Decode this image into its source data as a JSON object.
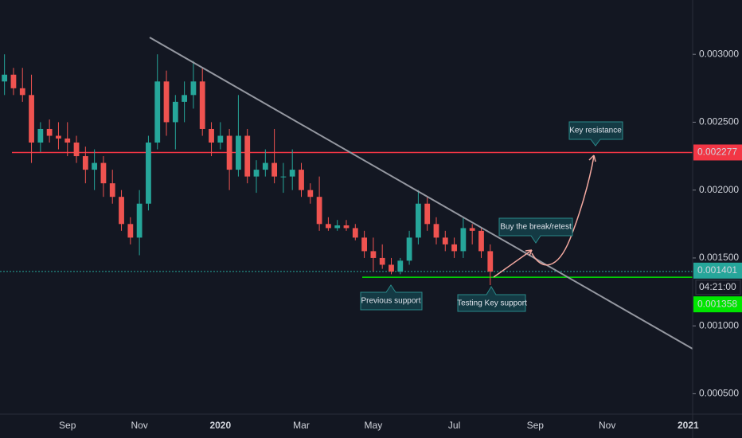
{
  "chart_data": {
    "type": "candlestick",
    "categories": [
      null,
      null,
      null,
      null,
      null,
      null,
      null,
      "Sep",
      null,
      null,
      null,
      null,
      null,
      null,
      null,
      "Nov",
      null,
      null,
      null,
      null,
      null,
      null,
      null,
      null,
      "2020",
      null,
      null,
      null,
      null,
      null,
      null,
      null,
      null,
      "Mar",
      null,
      null,
      null,
      null,
      null,
      null,
      null,
      "May",
      null,
      null,
      null,
      null,
      null,
      null,
      null,
      null,
      "Jul",
      null,
      null,
      null,
      null,
      null,
      null,
      null,
      null,
      "Sep",
      null,
      null,
      null,
      null,
      null,
      null,
      null,
      "Nov",
      null,
      null,
      null,
      null,
      null,
      null,
      null,
      null,
      "2021"
    ],
    "open": [
      0.0028,
      0.00285,
      0.00275,
      0.0027,
      0.00235,
      0.00245,
      0.0024,
      0.00238,
      0.00235,
      0.00225,
      0.00215,
      0.0022,
      0.00205,
      0.00195,
      0.00175,
      0.00165,
      0.0019,
      0.00235,
      0.0028,
      0.0025,
      0.00265,
      0.0027,
      0.0028,
      0.00245,
      0.00235,
      0.0024,
      0.00215,
      0.0024,
      0.0021,
      0.00215,
      0.0022,
      0.0021,
      0.0021,
      0.00215,
      0.002,
      0.00195,
      0.00175,
      0.00172,
      0.00174,
      0.00172,
      0.00165,
      0.00155,
      0.0015,
      0.00145,
      0.0014,
      0.00148,
      0.00165,
      0.0019,
      0.00175,
      0.00165,
      0.0016,
      0.00155,
      0.00172,
      0.0017,
      0.00155,
      null,
      null,
      null,
      null,
      null,
      null,
      null,
      null,
      null,
      null,
      null,
      null,
      null,
      null,
      null,
      null,
      null,
      null,
      null,
      null,
      null,
      null
    ],
    "high": [
      0.003,
      0.0029,
      0.0029,
      0.00285,
      0.0025,
      0.00252,
      0.0025,
      0.0025,
      0.0024,
      0.00232,
      0.0023,
      0.00225,
      0.00215,
      0.002,
      0.0018,
      0.002,
      0.0024,
      0.003,
      0.00288,
      0.0027,
      0.0028,
      0.00295,
      0.0029,
      0.0025,
      0.0025,
      0.00245,
      0.0027,
      0.00245,
      0.00222,
      0.0023,
      0.00245,
      0.0022,
      0.0023,
      0.0022,
      0.00205,
      0.0021,
      0.0018,
      0.00178,
      0.00178,
      0.00175,
      0.0017,
      0.00165,
      0.0016,
      0.0015,
      0.0015,
      0.0017,
      0.002,
      0.00195,
      0.0018,
      0.0017,
      0.00165,
      0.0018,
      0.00175,
      0.00172,
      0.0016,
      null,
      null,
      null,
      null,
      null,
      null,
      null,
      null,
      null,
      null,
      null,
      null,
      null,
      null,
      null,
      null,
      null,
      null,
      null,
      null,
      null,
      null
    ],
    "low": [
      0.0027,
      0.0027,
      0.00265,
      0.0022,
      0.00228,
      0.00235,
      0.0023,
      0.00225,
      0.0022,
      0.00205,
      0.002,
      0.00195,
      0.0019,
      0.0017,
      0.0016,
      0.00152,
      0.00185,
      0.0023,
      0.0024,
      0.0023,
      0.0025,
      0.0026,
      0.0024,
      0.00225,
      0.0023,
      0.002,
      0.0021,
      0.00205,
      0.00198,
      0.0021,
      0.00205,
      0.00198,
      0.002,
      0.00195,
      0.0019,
      0.0017,
      0.0017,
      0.0017,
      0.0017,
      0.00163,
      0.0015,
      0.0014,
      0.00142,
      0.00138,
      0.00138,
      0.00145,
      0.0016,
      0.0017,
      0.0016,
      0.00155,
      0.0015,
      0.0015,
      0.0016,
      0.0015,
      0.0013,
      null,
      null,
      null,
      null,
      null,
      null,
      null,
      null,
      null,
      null,
      null,
      null,
      null,
      null,
      null,
      null,
      null,
      null,
      null,
      null,
      null,
      null
    ],
    "close": [
      0.00285,
      0.00275,
      0.0027,
      0.00235,
      0.00245,
      0.0024,
      0.00238,
      0.00235,
      0.00225,
      0.00215,
      0.0022,
      0.00205,
      0.00195,
      0.00175,
      0.00165,
      0.0019,
      0.00235,
      0.0028,
      0.0025,
      0.00265,
      0.0027,
      0.0028,
      0.00245,
      0.00235,
      0.0024,
      0.00215,
      0.0024,
      0.0021,
      0.00215,
      0.0022,
      0.0021,
      0.0021,
      0.00215,
      0.002,
      0.00195,
      0.00175,
      0.00172,
      0.00174,
      0.00172,
      0.00165,
      0.00155,
      0.0015,
      0.00145,
      0.0014,
      0.00148,
      0.00165,
      0.0019,
      0.00175,
      0.00165,
      0.0016,
      0.00155,
      0.00172,
      0.0017,
      0.00155,
      0.0014,
      null,
      null,
      null,
      null,
      null,
      null,
      null,
      null,
      null,
      null,
      null,
      null,
      null,
      null,
      null,
      null,
      null,
      null,
      null,
      null,
      null,
      null
    ],
    "up_color": "#26a69a",
    "down_color": "#ef5350",
    "ylim": [
      0.00035,
      0.0034
    ],
    "yticks": [
      {
        "value": 0.0005,
        "label": "0.000500"
      },
      {
        "value": 0.001,
        "label": "0.001000"
      },
      {
        "value": 0.0015,
        "label": "0.001500"
      },
      {
        "value": 0.002,
        "label": "0.002000"
      },
      {
        "value": 0.0025,
        "label": "0.002500"
      },
      {
        "value": 0.003,
        "label": "0.003000"
      }
    ],
    "price_lines": [
      {
        "value": 0.002277,
        "color": "#f23645"
      },
      {
        "value": 0.001401,
        "color": "#26a69a"
      },
      {
        "value": 0.001358,
        "color": "#00e600"
      }
    ],
    "countdown": "04:21:00",
    "annotations": [
      "Key resistance",
      "Buy the break/retest",
      "Previous support",
      "Testing Key support"
    ]
  }
}
